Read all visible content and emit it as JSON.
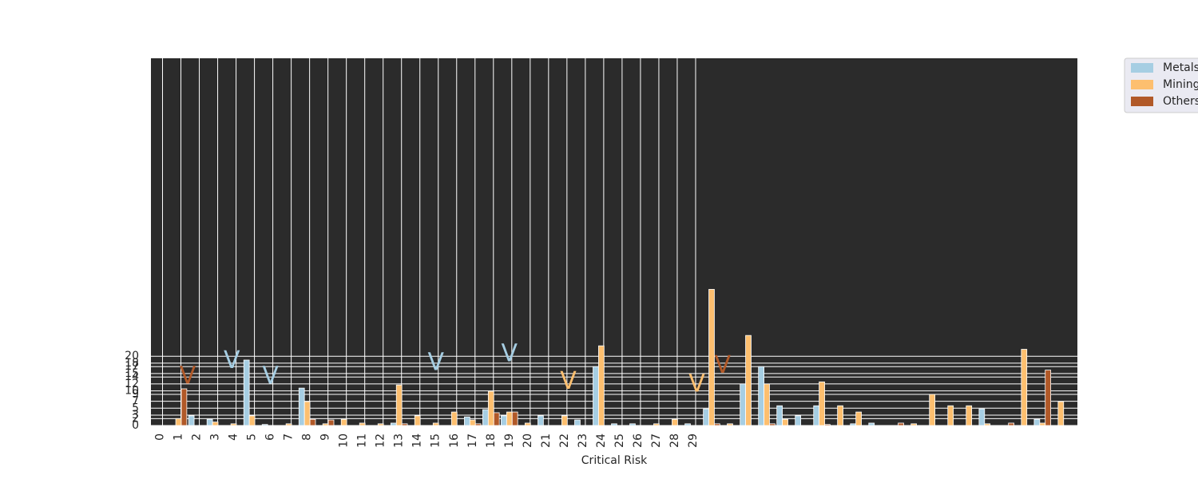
{
  "chart_data": {
    "type": "bar",
    "x_label": "Critical Risk",
    "categories": [
      "0",
      "1",
      "2",
      "3",
      "4",
      "5",
      "6",
      "7",
      "8",
      "9",
      "10",
      "11",
      "12",
      "13",
      "14",
      "15",
      "16",
      "17",
      "18",
      "19",
      "20",
      "21",
      "22",
      "23",
      "24",
      "25",
      "26",
      "27",
      "28",
      "29",
      null,
      null,
      null,
      null,
      null,
      null,
      null,
      null,
      null,
      null,
      null,
      null,
      null,
      null,
      null,
      null,
      null,
      null,
      null,
      null
    ],
    "series": [
      {
        "name": "Metals",
        "color": "#a6cee3",
        "values": [
          0,
          0,
          2.8,
          1.8,
          0,
          18.9,
          0.3,
          0,
          10.8,
          0,
          0,
          0,
          0,
          0.7,
          0,
          0,
          0,
          2.5,
          4.6,
          2.8,
          0,
          2.8,
          0,
          1.6,
          17,
          0.5,
          0.5,
          0,
          0,
          0.5,
          4.8,
          0,
          12,
          17,
          5.7,
          2.8,
          5.7,
          0,
          0.5,
          0.7,
          0,
          0,
          0,
          0,
          0,
          4.8,
          0,
          0,
          1.8,
          0
        ]
      },
      {
        "name": "Mining",
        "color": "#fdbf6f",
        "values": [
          0,
          2,
          0,
          1,
          0.5,
          2.8,
          0,
          0.5,
          6.9,
          0.5,
          1.8,
          0.7,
          0.5,
          11.7,
          2.8,
          0.7,
          3.9,
          1.6,
          9.9,
          3.9,
          0.7,
          0,
          2.8,
          0,
          23,
          0,
          0,
          0.5,
          1.8,
          0,
          39.3,
          0.5,
          26,
          12,
          1.8,
          0,
          12.6,
          5.7,
          3.9,
          0,
          0,
          0.5,
          9,
          5.7,
          5.7,
          0.5,
          0,
          22,
          0.7,
          6.9
        ]
      },
      {
        "name": "Others",
        "color": "#b15928",
        "values": [
          0,
          10.6,
          0,
          0,
          0,
          0,
          0,
          0,
          1.8,
          1.6,
          0,
          0,
          0,
          0.5,
          0,
          0,
          0,
          0.5,
          3.7,
          3.9,
          0,
          0,
          0,
          0,
          0,
          0,
          0,
          0,
          0,
          0,
          0.5,
          0,
          0,
          0.5,
          0,
          0,
          0.3,
          0,
          0,
          0,
          0.7,
          0,
          0,
          0,
          0,
          0,
          0.7,
          0,
          16,
          0
        ]
      }
    ],
    "xlim": [
      -0.5,
      49.9
    ],
    "xticks": [
      0,
      1,
      2,
      3,
      4,
      5,
      6,
      7,
      8,
      9,
      10,
      11,
      12,
      13,
      14,
      15,
      16,
      17,
      18,
      19,
      20,
      21,
      22,
      23,
      24,
      25,
      26,
      27,
      28,
      29
    ],
    "ylim": [
      0,
      106
    ],
    "yticks": [
      0,
      2,
      3,
      5,
      7,
      9,
      10,
      12,
      14,
      15,
      17,
      18,
      20
    ],
    "grid": true,
    "background": "#2b2b2b",
    "legend": "outside-upper-right",
    "annotations": [
      {
        "text": "V",
        "x": 1.5,
        "y": 14,
        "color": "#b15928"
      },
      {
        "text": "V",
        "x": 3.9,
        "y": 18.6,
        "color": "#a6cee3"
      },
      {
        "text": "V",
        "x": 6,
        "y": 14,
        "color": "#a6cee3"
      },
      {
        "text": "V",
        "x": 15,
        "y": 18,
        "color": "#a6cee3"
      },
      {
        "text": "V",
        "x": 19,
        "y": 20.5,
        "color": "#a6cee3"
      },
      {
        "text": "V",
        "x": 22.2,
        "y": 12.6,
        "color": "#fdbf6f"
      },
      {
        "text": "V",
        "x": 29.2,
        "y": 11.7,
        "color": "#fdbf6f"
      },
      {
        "text": "V",
        "x": 30.6,
        "y": 17.2,
        "color": "#b15928"
      }
    ]
  }
}
